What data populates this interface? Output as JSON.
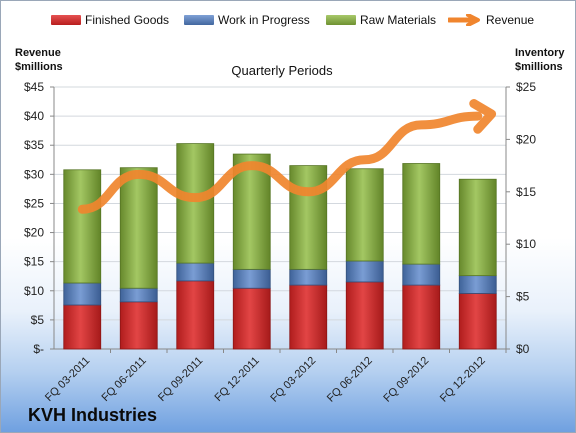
{
  "legend": {
    "finished": "Finished Goods",
    "wip": "Work in Progress",
    "raw": "Raw Materials",
    "revenue": "Revenue"
  },
  "axes": {
    "left_title_1": "Revenue",
    "left_title_2": "$millions",
    "right_title_1": "Inventory",
    "right_title_2": "$millions"
  },
  "subtitle": "Quarterly Periods",
  "company": "KVH Industries",
  "colors": {
    "finished": "#d42a2a",
    "wip": "#5b82c2",
    "raw": "#8db24a",
    "revenue": "#f0852e"
  },
  "chart_data": {
    "type": "bar",
    "categories": [
      "FQ 03-2011",
      "FQ 06-2011",
      "FQ 09-2011",
      "FQ 12-2011",
      "FQ 03-2012",
      "FQ 06-2012",
      "FQ 09-2012",
      "FQ 12-2012"
    ],
    "series": [
      {
        "name": "Finished Goods",
        "axis": "right",
        "stack": "inventory",
        "values": [
          4.2,
          4.5,
          6.5,
          5.8,
          6.1,
          6.4,
          6.1,
          5.3
        ]
      },
      {
        "name": "Work in Progress",
        "axis": "right",
        "stack": "inventory",
        "values": [
          2.1,
          1.3,
          1.7,
          1.8,
          1.5,
          2.0,
          2.0,
          1.7
        ]
      },
      {
        "name": "Raw Materials",
        "axis": "right",
        "stack": "inventory",
        "values": [
          10.8,
          11.5,
          11.4,
          11.0,
          9.9,
          8.8,
          9.6,
          9.2
        ]
      },
      {
        "name": "Revenue",
        "axis": "left",
        "type": "line",
        "values": [
          24,
          30,
          26,
          31.5,
          27,
          32.5,
          38.5,
          40
        ]
      }
    ],
    "left_axis": {
      "ylim": [
        0,
        45
      ],
      "ticks": [
        "$-",
        "$5",
        "$10",
        "$15",
        "$20",
        "$25",
        "$30",
        "$35",
        "$40",
        "$45"
      ]
    },
    "right_axis": {
      "ylim": [
        0,
        25
      ],
      "ticks": [
        "$0",
        "$5",
        "$10",
        "$15",
        "$20",
        "$25"
      ]
    },
    "grid": true,
    "legend_position": "top"
  }
}
